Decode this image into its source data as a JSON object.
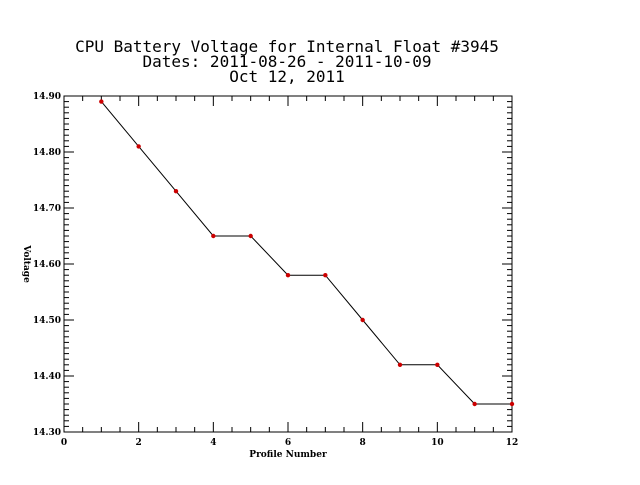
{
  "chart_data": {
    "type": "line",
    "title_lines": [
      "CPU Battery Voltage for Internal Float #3945",
      "Dates:  2011-08-26 -  2011-10-09",
      "Oct 12, 2011"
    ],
    "xlabel": "Profile Number",
    "ylabel": "Voltage",
    "xlim": [
      0,
      12
    ],
    "ylim": [
      14.3,
      14.9
    ],
    "xticks": [
      0,
      2,
      4,
      6,
      8,
      10,
      12
    ],
    "xtick_labels": [
      "0",
      "2",
      "4",
      "6",
      "8",
      "10",
      "12"
    ],
    "yticks": [
      14.3,
      14.4,
      14.5,
      14.6,
      14.7,
      14.8,
      14.9
    ],
    "ytick_labels": [
      "14.30",
      "14.40",
      "14.50",
      "14.60",
      "14.70",
      "14.80",
      "14.90"
    ],
    "x_minor_per_major": 4,
    "y_minor_per_major": 10,
    "grid": false,
    "series": [
      {
        "x": [
          1,
          2,
          3,
          4,
          5,
          6,
          7,
          8,
          9,
          10,
          11,
          12
        ],
        "y": [
          14.89,
          14.81,
          14.73,
          14.65,
          14.65,
          14.58,
          14.58,
          14.5,
          14.42,
          14.42,
          14.35,
          14.35
        ],
        "line_color": "#000000",
        "marker_color": "#cc0000"
      }
    ]
  }
}
